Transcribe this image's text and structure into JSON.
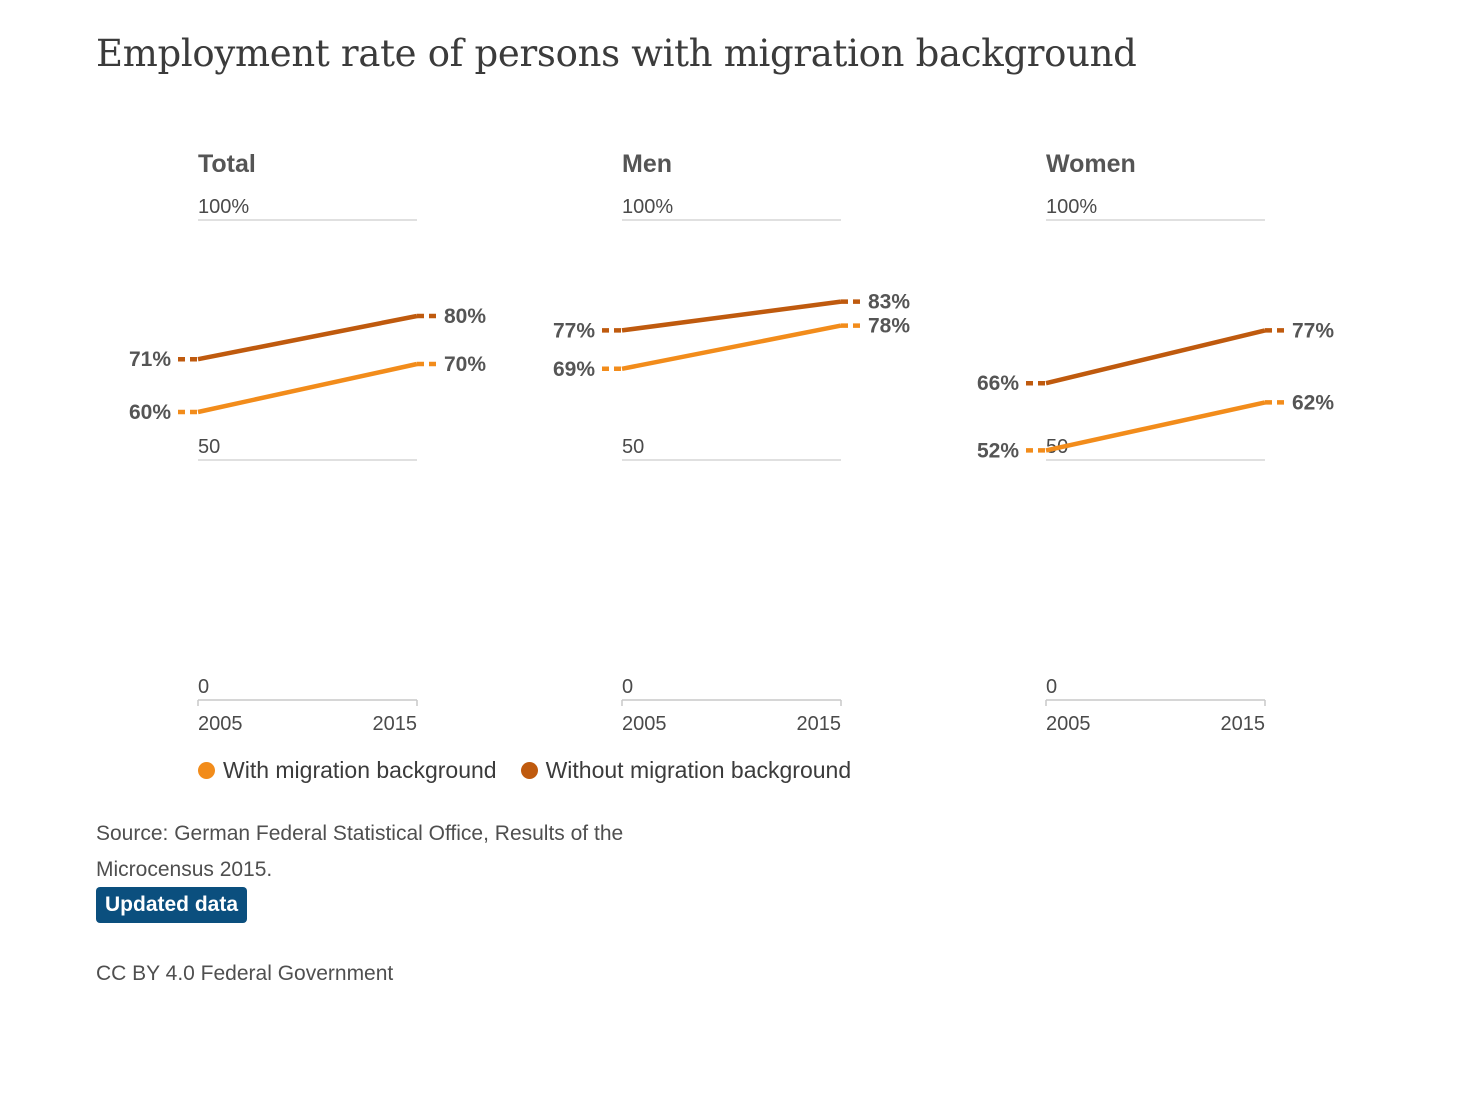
{
  "title": "Employment rate of persons with migration background",
  "colors": {
    "with": "#f28c1b",
    "without": "#bf5a0e",
    "grid": "#d6d6d6",
    "text": "#4a4a4a",
    "badge": "#0b4f7e"
  },
  "legend": {
    "with_label": "With migration background",
    "without_label": "Without migration background"
  },
  "source": "Source: German Federal Statistical Office, Results of the Microcensus 2015.",
  "badge_label": "Updated data",
  "license": "CC BY 4.0 Federal Government",
  "chart_data": [
    {
      "type": "line",
      "title": "Total",
      "x": [
        "2005",
        "2015"
      ],
      "y_ticks": [
        "0",
        "50",
        "100%"
      ],
      "ylim": [
        0,
        100
      ],
      "series": [
        {
          "name": "Without migration background",
          "values": [
            71,
            80
          ],
          "labels": [
            "71%",
            "80%"
          ]
        },
        {
          "name": "With migration background",
          "values": [
            60,
            70
          ],
          "labels": [
            "60%",
            "70%"
          ]
        }
      ]
    },
    {
      "type": "line",
      "title": "Men",
      "x": [
        "2005",
        "2015"
      ],
      "y_ticks": [
        "0",
        "50",
        "100%"
      ],
      "ylim": [
        0,
        100
      ],
      "series": [
        {
          "name": "Without migration background",
          "values": [
            77,
            83
          ],
          "labels": [
            "77%",
            "83%"
          ]
        },
        {
          "name": "With migration background",
          "values": [
            69,
            78
          ],
          "labels": [
            "69%",
            "78%"
          ]
        }
      ]
    },
    {
      "type": "line",
      "title": "Women",
      "x": [
        "2005",
        "2015"
      ],
      "y_ticks": [
        "0",
        "50",
        "100%"
      ],
      "ylim": [
        0,
        100
      ],
      "series": [
        {
          "name": "Without migration background",
          "values": [
            66,
            77
          ],
          "labels": [
            "66%",
            "77%"
          ]
        },
        {
          "name": "With migration background",
          "values": [
            52,
            62
          ],
          "labels": [
            "52%",
            "62%"
          ]
        }
      ]
    }
  ]
}
